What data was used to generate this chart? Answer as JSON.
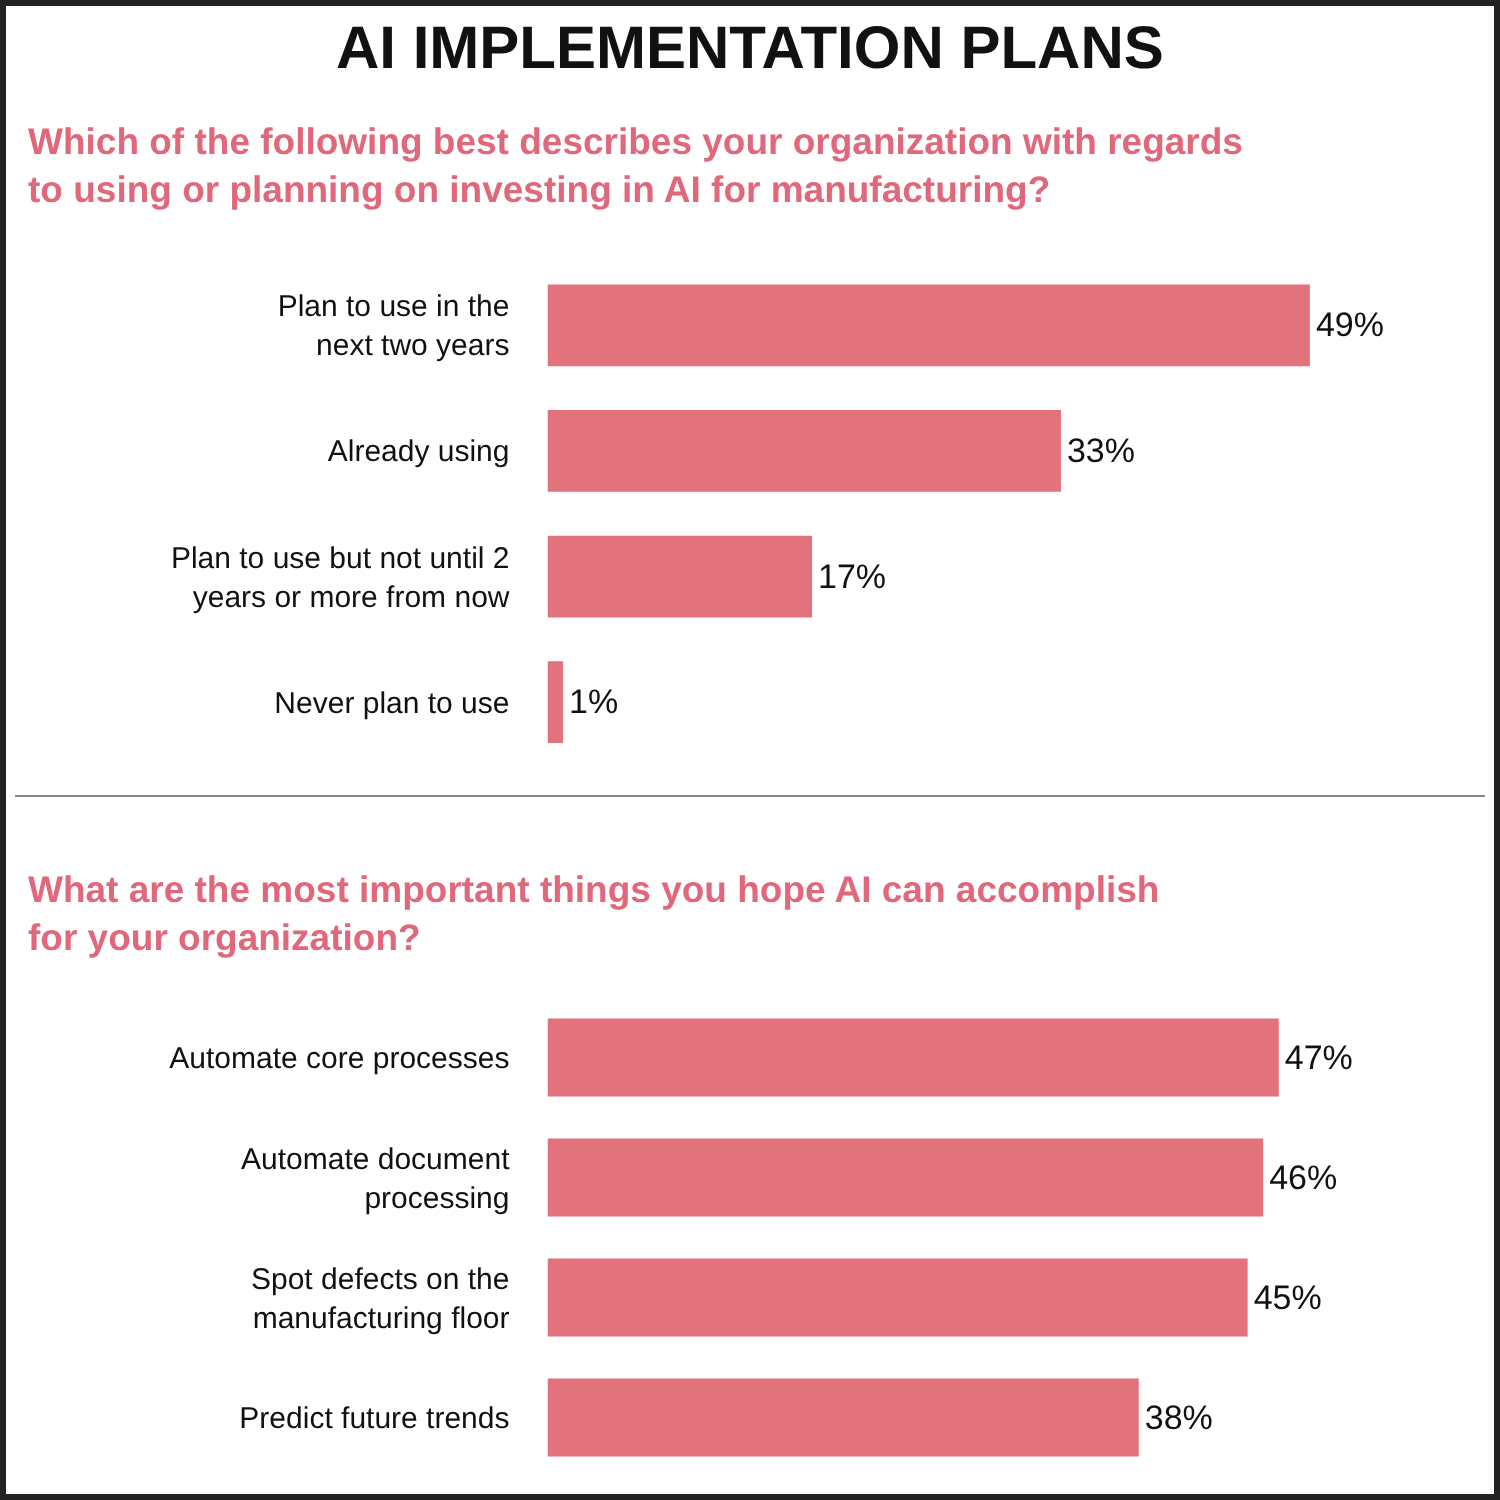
{
  "chart_data": [
    {
      "type": "bar",
      "orientation": "horizontal",
      "title": "AI IMPLEMENTATION PLANS",
      "subtitle": "Which of the following best describes your organization with regards\nto using or planning on investing in AI for manufacturing?",
      "categories": [
        "Plan to use in the\nnext two years",
        "Already using",
        "Plan to use but not until 2\nyears or more from now",
        "Never plan to use"
      ],
      "values": [
        49,
        33,
        17,
        1
      ],
      "value_labels": [
        "49%",
        "33%",
        "17%",
        "1%"
      ],
      "color": "#e2727b",
      "tick_labels": "y"
    },
    {
      "type": "bar",
      "orientation": "horizontal",
      "title": "What are the most important things you hope AI can accomplish\nfor your organization?",
      "categories": [
        "Automate core processes",
        "Automate document\nprocessing",
        "Spot defects on the\nmanufacturing floor",
        "Predict future trends"
      ],
      "values": [
        47,
        46,
        45,
        38
      ],
      "value_labels": [
        "47%",
        "46%",
        "45%",
        "38%"
      ],
      "color": "#e2727b",
      "tick_labels": "y"
    }
  ]
}
